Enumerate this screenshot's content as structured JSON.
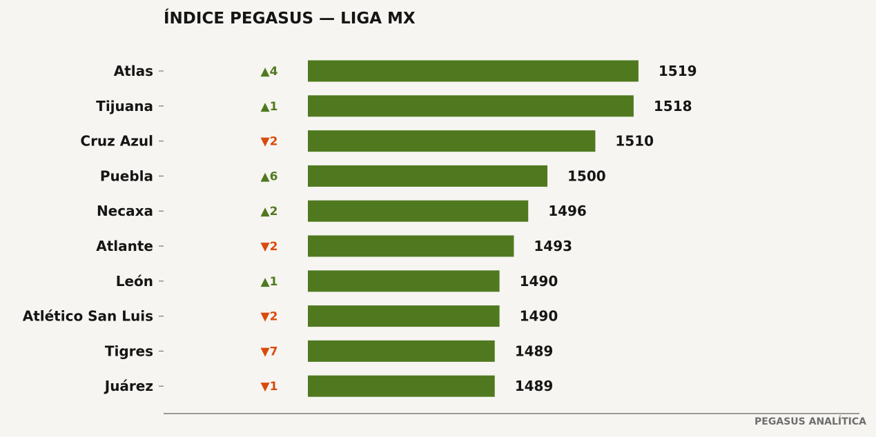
{
  "chart_data": {
    "type": "bar",
    "orientation": "horizontal",
    "title": "ÍNDICE PEGASUS — LIGA MX",
    "footer": "PEGASUS ANALÍTICA",
    "categories": [
      "Atlas",
      "Tijuana",
      "Cruz Azul",
      "Puebla",
      "Necaxa",
      "Atlante",
      "León",
      "Atlético San Luis",
      "Tigres",
      "Juárez"
    ],
    "values": [
      1519,
      1518,
      1510,
      1500,
      1496,
      1493,
      1490,
      1490,
      1489,
      1489
    ],
    "changes": [
      "▲4",
      "▲1",
      "▼2",
      "▲6",
      "▲2",
      "▼2",
      "▲1",
      "▼2",
      "▼7",
      "▼1"
    ],
    "xlim": [
      1450,
      1540
    ],
    "grid": false,
    "colors": {
      "bar": "#50791f",
      "up": "#50791f",
      "down": "#d84b0c"
    }
  }
}
